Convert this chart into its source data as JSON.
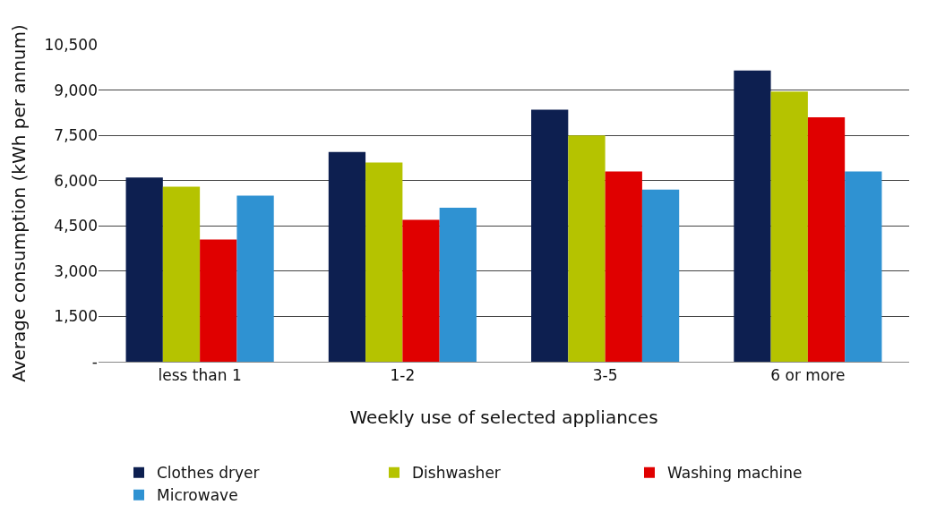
{
  "chart_data": {
    "type": "bar",
    "xlabel": "Weekly use of selected appliances",
    "ylabel": "Average consumption (kWh per annum)",
    "categories": [
      "less than 1",
      "1-2",
      "3-5",
      "6 or more"
    ],
    "series": [
      {
        "name": "Clothes dryer",
        "color": "#0d1f50",
        "values": [
          6100,
          6950,
          8350,
          9650
        ]
      },
      {
        "name": "Dishwasher",
        "color": "#b5c300",
        "values": [
          5800,
          6600,
          7500,
          8950
        ]
      },
      {
        "name": "Washing machine",
        "color": "#e00000",
        "values": [
          4050,
          4700,
          6300,
          8100
        ]
      },
      {
        "name": "Microwave",
        "color": "#2f92d2",
        "values": [
          5500,
          5100,
          5700,
          6300
        ]
      }
    ],
    "ylim": [
      0,
      10500
    ],
    "yticks": [
      {
        "value": 0,
        "label": "-"
      },
      {
        "value": 1500,
        "label": "1,500"
      },
      {
        "value": 3000,
        "label": "3,000"
      },
      {
        "value": 4500,
        "label": "4,500"
      },
      {
        "value": 6000,
        "label": "6,000"
      },
      {
        "value": 7500,
        "label": "7,500"
      },
      {
        "value": 9000,
        "label": "9,000"
      },
      {
        "value": 10500,
        "label": "10,500"
      }
    ],
    "grid": "y",
    "legend": "bottom"
  }
}
